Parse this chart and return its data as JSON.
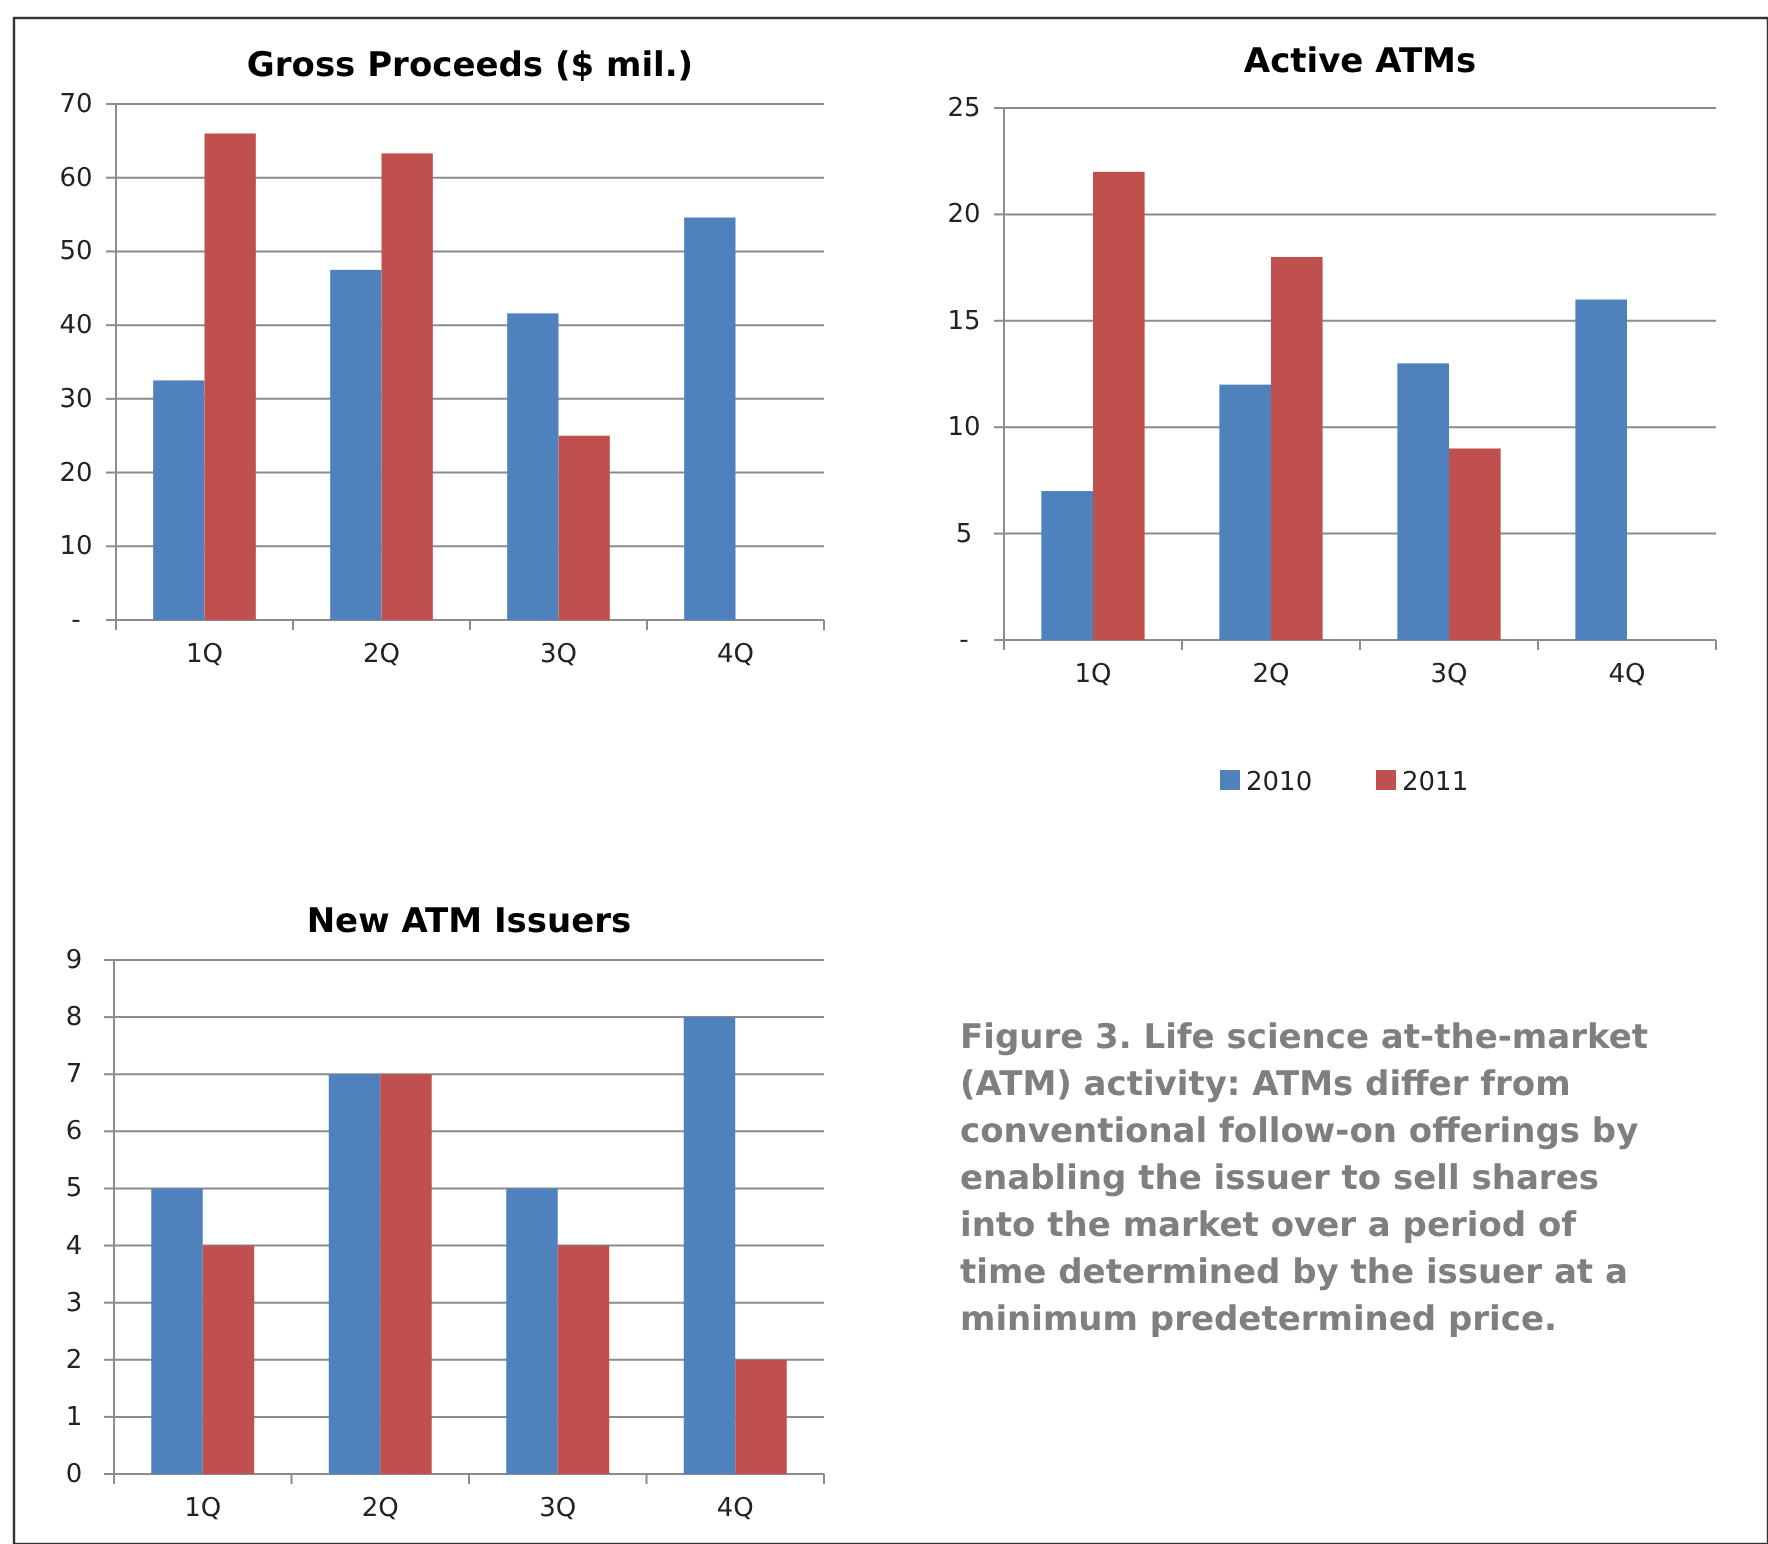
{
  "chart_data": [
    {
      "type": "bar",
      "title": "Gross Proceeds ($ mil.)",
      "categories": [
        "1Q",
        "2Q",
        "3Q",
        "4Q"
      ],
      "series": [
        {
          "color": "#4f81bd",
          "values": [
            32.5,
            47.5,
            41.6,
            54.6
          ]
        },
        {
          "color": "#c0504d",
          "values": [
            66,
            63.3,
            25,
            null
          ]
        }
      ],
      "ylim": [
        0,
        70
      ],
      "yticks": [
        {
          "value": 0,
          "label": "-"
        },
        10,
        20,
        30,
        40,
        50,
        60,
        70
      ],
      "grid": "y",
      "legend": false
    },
    {
      "type": "bar",
      "title": "Active ATMs",
      "categories": [
        "1Q",
        "2Q",
        "3Q",
        "4Q"
      ],
      "series": [
        {
          "name": "2010",
          "color": "#4f81bd",
          "values": [
            7,
            12,
            13,
            16
          ]
        },
        {
          "name": "2011",
          "color": "#c0504d",
          "values": [
            22,
            18,
            9,
            null
          ]
        }
      ],
      "ylim": [
        0,
        25
      ],
      "yticks": [
        {
          "value": 0,
          "label": "-"
        },
        5,
        10,
        15,
        20,
        25
      ],
      "grid": "y",
      "legend": "bottom"
    },
    {
      "type": "bar",
      "title": "New ATM Issuers",
      "categories": [
        "1Q",
        "2Q",
        "3Q",
        "4Q"
      ],
      "series": [
        {
          "color": "#4f81bd",
          "values": [
            5,
            7,
            5,
            8
          ]
        },
        {
          "color": "#c0504d",
          "values": [
            4,
            7,
            4,
            2
          ]
        }
      ],
      "ylim": [
        0,
        9
      ],
      "yticks": [
        0,
        1,
        2,
        3,
        4,
        5,
        6,
        7,
        8,
        9
      ],
      "grid": "y",
      "legend": false
    },
    {
      "type": "other",
      "annotations": [
        "Figure 3. Life science at-the-market (ATM) activity: ATMs differ from conventional follow-on offerings by enabling the issuer to sell shares into the market over a period of time determined by the issuer at a minimum predetermined price."
      ]
    }
  ]
}
